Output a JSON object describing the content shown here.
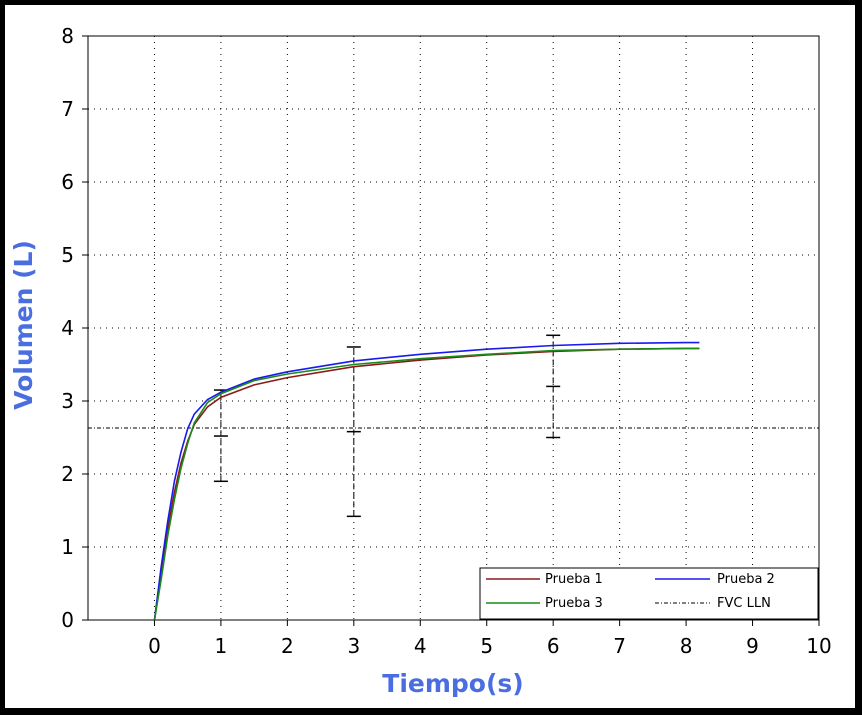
{
  "chart_data": {
    "type": "line",
    "xlabel": "Tiempo(s)",
    "ylabel": "Volumen (L)",
    "xlim": [
      -1,
      10
    ],
    "ylim": [
      0,
      8
    ],
    "x_ticks": [
      "0",
      "1",
      "2",
      "3",
      "4",
      "5",
      "6",
      "7",
      "8",
      "9",
      "10"
    ],
    "y_ticks": [
      "0",
      "1",
      "2",
      "3",
      "4",
      "5",
      "6",
      "7",
      "8"
    ],
    "grid": true,
    "legend_position": "bottom-right",
    "axis_color": "#4a6ee0",
    "series": [
      {
        "name": "Prueba 1",
        "color": "#8b1a1a",
        "x": [
          0,
          0.1,
          0.2,
          0.3,
          0.4,
          0.5,
          0.6,
          0.8,
          1.0,
          1.5,
          2,
          3,
          4,
          5,
          6,
          7,
          8,
          8.2
        ],
        "y": [
          0,
          0.65,
          1.25,
          1.75,
          2.15,
          2.45,
          2.68,
          2.92,
          3.05,
          3.22,
          3.32,
          3.47,
          3.56,
          3.63,
          3.68,
          3.71,
          3.72,
          3.72
        ]
      },
      {
        "name": "Prueba 2",
        "color": "#1a1aee",
        "x": [
          0,
          0.1,
          0.2,
          0.3,
          0.4,
          0.5,
          0.6,
          0.8,
          1.0,
          1.5,
          2,
          3,
          4,
          5,
          6,
          7,
          8,
          8.2
        ],
        "y": [
          0,
          0.72,
          1.35,
          1.9,
          2.3,
          2.62,
          2.82,
          3.02,
          3.12,
          3.3,
          3.4,
          3.55,
          3.64,
          3.71,
          3.76,
          3.79,
          3.8,
          3.8
        ]
      },
      {
        "name": "Prueba 3",
        "color": "#1a8b1a",
        "x": [
          0,
          0.1,
          0.2,
          0.3,
          0.4,
          0.5,
          0.6,
          0.8,
          1.0,
          1.5,
          2,
          3,
          4,
          5,
          6,
          7,
          8,
          8.2
        ],
        "y": [
          0,
          0.55,
          1.15,
          1.65,
          2.08,
          2.42,
          2.7,
          2.98,
          3.1,
          3.28,
          3.37,
          3.5,
          3.58,
          3.64,
          3.69,
          3.71,
          3.72,
          3.72
        ]
      },
      {
        "name": "FVC LLN",
        "color": "#000000",
        "style": "dash-dot",
        "x": [
          -1,
          10
        ],
        "y": [
          2.63,
          2.63
        ]
      }
    ],
    "error_bars": [
      {
        "x": 1,
        "low": 1.9,
        "mid": 2.52,
        "high": 3.15
      },
      {
        "x": 3,
        "low": 1.42,
        "mid": 2.58,
        "high": 3.74
      },
      {
        "x": 6,
        "low": 2.5,
        "mid": 3.2,
        "high": 3.9
      }
    ]
  }
}
